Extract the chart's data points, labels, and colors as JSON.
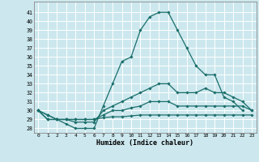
{
  "xlabel": "Humidex (Indice chaleur)",
  "bg_color": "#cce8ee",
  "grid_color": "#ffffff",
  "line_color": "#1a6e6a",
  "xlim": [
    -0.5,
    23.5
  ],
  "ylim": [
    27.5,
    42.2
  ],
  "xticks": [
    0,
    1,
    2,
    3,
    4,
    5,
    6,
    7,
    8,
    9,
    10,
    11,
    12,
    13,
    14,
    15,
    16,
    17,
    18,
    19,
    20,
    21,
    22,
    23
  ],
  "yticks": [
    28,
    29,
    30,
    31,
    32,
    33,
    34,
    35,
    36,
    37,
    38,
    39,
    40,
    41
  ],
  "lines": [
    [
      30,
      29,
      29,
      28.5,
      28,
      28,
      28,
      30.5,
      33,
      35.5,
      36,
      39,
      40.5,
      41,
      41,
      39,
      37,
      35,
      34,
      34,
      31.5,
      31,
      30,
      null
    ],
    [
      30,
      29,
      29,
      29,
      28.7,
      28.7,
      28.7,
      30,
      30.5,
      31,
      31.5,
      32,
      32.5,
      33,
      33,
      32,
      32,
      32,
      32.5,
      32,
      32,
      31.5,
      31,
      30
    ],
    [
      30,
      29.5,
      29,
      29,
      29,
      29,
      29,
      29.5,
      30,
      30,
      30.3,
      30.5,
      31,
      31,
      31,
      30.5,
      30.5,
      30.5,
      30.5,
      30.5,
      30.5,
      30.5,
      30.5,
      30
    ],
    [
      30,
      29.5,
      29,
      29,
      29,
      29,
      29,
      29.2,
      29.3,
      29.3,
      29.4,
      29.5,
      29.5,
      29.5,
      29.5,
      29.5,
      29.5,
      29.5,
      29.5,
      29.5,
      29.5,
      29.5,
      29.5,
      29.5
    ]
  ]
}
